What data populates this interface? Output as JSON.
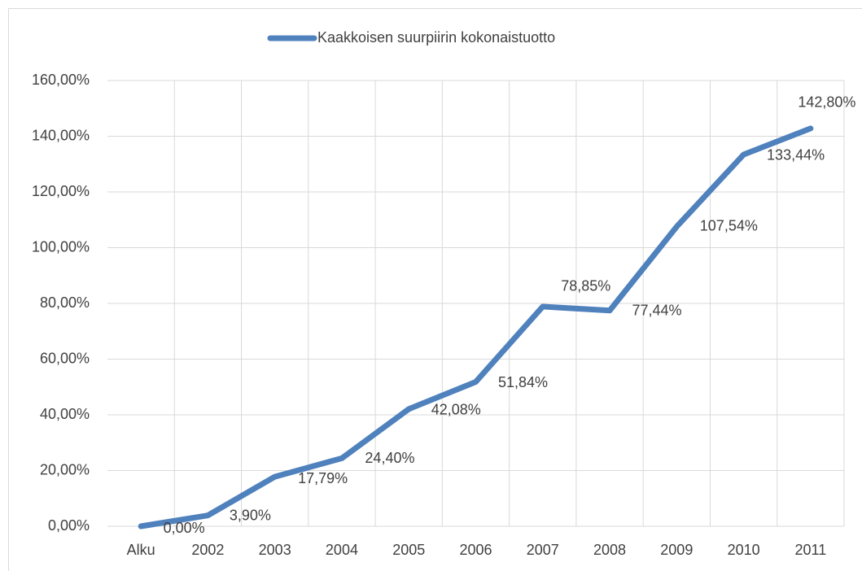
{
  "chart_data": {
    "type": "line",
    "categories": [
      "Alku",
      "2002",
      "2003",
      "2004",
      "2005",
      "2006",
      "2007",
      "2008",
      "2009",
      "2010",
      "2011"
    ],
    "series": [
      {
        "name": "Kaakkoisen suurpiirin kokonaistuotto",
        "color": "#4f81bd",
        "values": [
          0,
          3.9,
          17.79,
          24.4,
          42.08,
          51.84,
          78.85,
          77.44,
          107.54,
          133.44,
          142.8
        ],
        "value_labels": [
          "0,00%",
          "3,90%",
          "17,79%",
          "24,40%",
          "42,08%",
          "51,84%",
          "78,85%",
          "77,44%",
          "107,54%",
          "133,44%",
          "142,80%"
        ]
      }
    ],
    "ylim": [
      0,
      160
    ],
    "yticks": [
      {
        "value": 0,
        "label": "0,00%"
      },
      {
        "value": 20,
        "label": "20,00%"
      },
      {
        "value": 40,
        "label": "40,00%"
      },
      {
        "value": 60,
        "label": "60,00%"
      },
      {
        "value": 80,
        "label": "80,00%"
      },
      {
        "value": 100,
        "label": "100,00%"
      },
      {
        "value": 120,
        "label": "120,00%"
      },
      {
        "value": 140,
        "label": "140,00%"
      },
      {
        "value": 160,
        "label": "160,00%"
      }
    ],
    "grid": true,
    "legend": "top"
  }
}
